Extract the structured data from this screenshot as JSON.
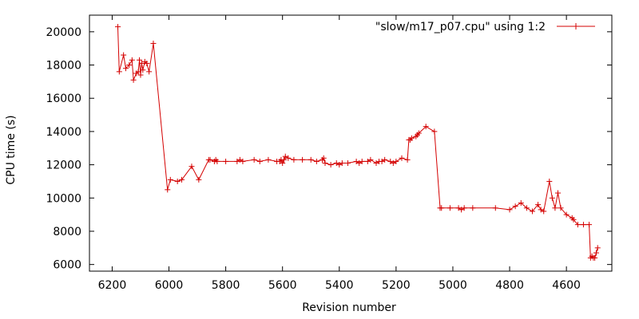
{
  "chart_data": {
    "type": "line",
    "xlabel": "Revision number",
    "ylabel": "CPU time (s)",
    "xlim": [
      6280,
      4440
    ],
    "ylim": [
      5600,
      21000
    ],
    "x_reversed": true,
    "grid": false,
    "legend_position": "top-right",
    "xticks": [
      6200,
      6000,
      5800,
      5600,
      5400,
      5200,
      5000,
      4800,
      4600
    ],
    "yticks": [
      6000,
      8000,
      10000,
      12000,
      14000,
      16000,
      18000,
      20000
    ],
    "marker": "plus",
    "line_color": "#d40000",
    "series": [
      {
        "name": "\"slow/m17_p07.cpu\" using 1:2",
        "x": [
          6180,
          6175,
          6160,
          6152,
          6140,
          6130,
          6125,
          6115,
          6108,
          6104,
          6100,
          6096,
          6092,
          6085,
          6078,
          6070,
          6055,
          6005,
          5995,
          5970,
          5955,
          5920,
          5895,
          5860,
          5855,
          5840,
          5835,
          5830,
          5800,
          5760,
          5750,
          5740,
          5700,
          5680,
          5650,
          5620,
          5610,
          5605,
          5600,
          5595,
          5590,
          5580,
          5560,
          5530,
          5500,
          5480,
          5460,
          5455,
          5450,
          5430,
          5410,
          5400,
          5390,
          5370,
          5340,
          5330,
          5320,
          5300,
          5290,
          5270,
          5260,
          5250,
          5240,
          5220,
          5210,
          5200,
          5180,
          5160,
          5155,
          5150,
          5145,
          5130,
          5125,
          5120,
          5095,
          5065,
          5045,
          5040,
          5010,
          4980,
          4970,
          4960,
          4930,
          4850,
          4800,
          4780,
          4760,
          4740,
          4720,
          4700,
          4690,
          4680,
          4660,
          4650,
          4640,
          4630,
          4620,
          4600,
          4580,
          4575,
          4560,
          4540,
          4520,
          4515,
          4510,
          4505,
          4500,
          4495,
          4490
        ],
        "y": [
          20300,
          17600,
          18600,
          17800,
          18000,
          18300,
          17100,
          17500,
          17600,
          18300,
          17400,
          18100,
          17700,
          18200,
          18100,
          17600,
          19300,
          10500,
          11100,
          11000,
          11100,
          11900,
          11100,
          12300,
          12300,
          12200,
          12300,
          12200,
          12200,
          12200,
          12300,
          12200,
          12300,
          12200,
          12300,
          12200,
          12200,
          12300,
          12100,
          12300,
          12500,
          12400,
          12300,
          12300,
          12300,
          12200,
          12300,
          12400,
          12100,
          12000,
          12100,
          12000,
          12100,
          12100,
          12200,
          12100,
          12200,
          12200,
          12300,
          12100,
          12200,
          12200,
          12300,
          12200,
          12100,
          12200,
          12400,
          12300,
          13500,
          13500,
          13600,
          13700,
          13800,
          13900,
          14300,
          14000,
          9400,
          9400,
          9400,
          9400,
          9300,
          9400,
          9400,
          9400,
          9300,
          9500,
          9700,
          9400,
          9200,
          9600,
          9300,
          9200,
          11000,
          10000,
          9400,
          10300,
          9400,
          9000,
          8800,
          8700,
          8400,
          8400,
          8400,
          6400,
          6500,
          6400,
          6400,
          6700,
          7000
        ]
      }
    ]
  }
}
